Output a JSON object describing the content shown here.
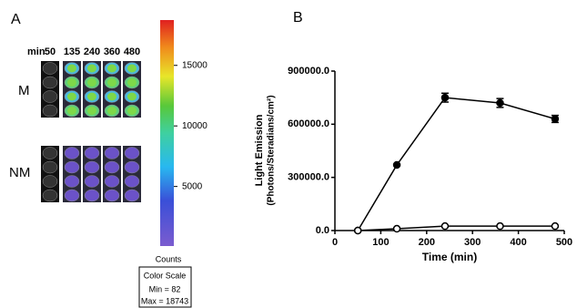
{
  "panel_a": {
    "label": "A",
    "time_unit": "min",
    "times": [
      "50",
      "135",
      "240",
      "360",
      "480"
    ],
    "rows": [
      "M",
      "NM"
    ]
  },
  "chart_data": [
    {
      "type": "colorbar",
      "ylim": [
        82,
        18743
      ],
      "yticks": [
        5000,
        10000,
        15000
      ],
      "ylabel": "Counts",
      "scale_title": "Color Scale",
      "min_label": "Min = 82",
      "max_label": "Max = 18743"
    },
    {
      "type": "line",
      "panel_label": "B",
      "xlabel": "Time (min)",
      "ylabel": [
        "Light Emission",
        "(Photons/Steradians/cm²)"
      ],
      "x": [
        50,
        135,
        240,
        360,
        480
      ],
      "series": [
        {
          "color": "#000000",
          "marker_fill": "#000000",
          "values": [
            0,
            370000,
            750000,
            720000,
            630000
          ],
          "errors": [
            0,
            0,
            25000,
            25000,
            20000
          ]
        },
        {
          "color": "#000000",
          "marker_fill": "#ffffff",
          "values": [
            0,
            10000,
            25000,
            25000,
            25000
          ]
        }
      ],
      "xlim": [
        0,
        500
      ],
      "xticks": [
        0,
        100,
        200,
        300,
        400,
        500
      ],
      "ylim": [
        0,
        900000
      ],
      "yticks": [
        {
          "value": 0,
          "label": "0.0"
        },
        {
          "value": 300000,
          "label": "300000.0"
        },
        {
          "value": 600000,
          "label": "600000.0"
        },
        {
          "value": 900000,
          "label": "900000.0"
        }
      ]
    }
  ]
}
